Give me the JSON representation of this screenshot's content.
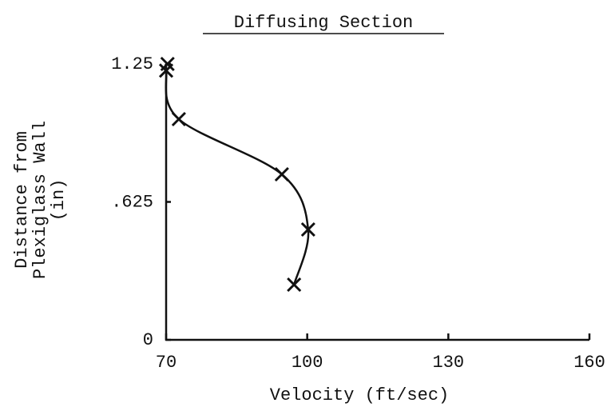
{
  "chart_data": {
    "type": "line",
    "title": "Diffusing Section",
    "xlabel": "Velocity (ft/sec)",
    "ylabel": [
      "Distance from",
      "Plexiglass Wall",
      "(in)"
    ],
    "x": [
      70.3,
      70,
      72.7,
      94.6,
      100.2,
      97.2
    ],
    "values": [
      1.25,
      1.22,
      1.0,
      0.75,
      0.5,
      0.25
    ],
    "color": "#111111",
    "marker": "x",
    "xlim": [
      70,
      160
    ],
    "xticks": [
      70,
      100,
      130,
      160
    ],
    "ylim": [
      0,
      1.25
    ],
    "yticks": [
      0,
      {
        "value": 0.625,
        "label": ".625"
      },
      1.25
    ],
    "grid": false
  }
}
